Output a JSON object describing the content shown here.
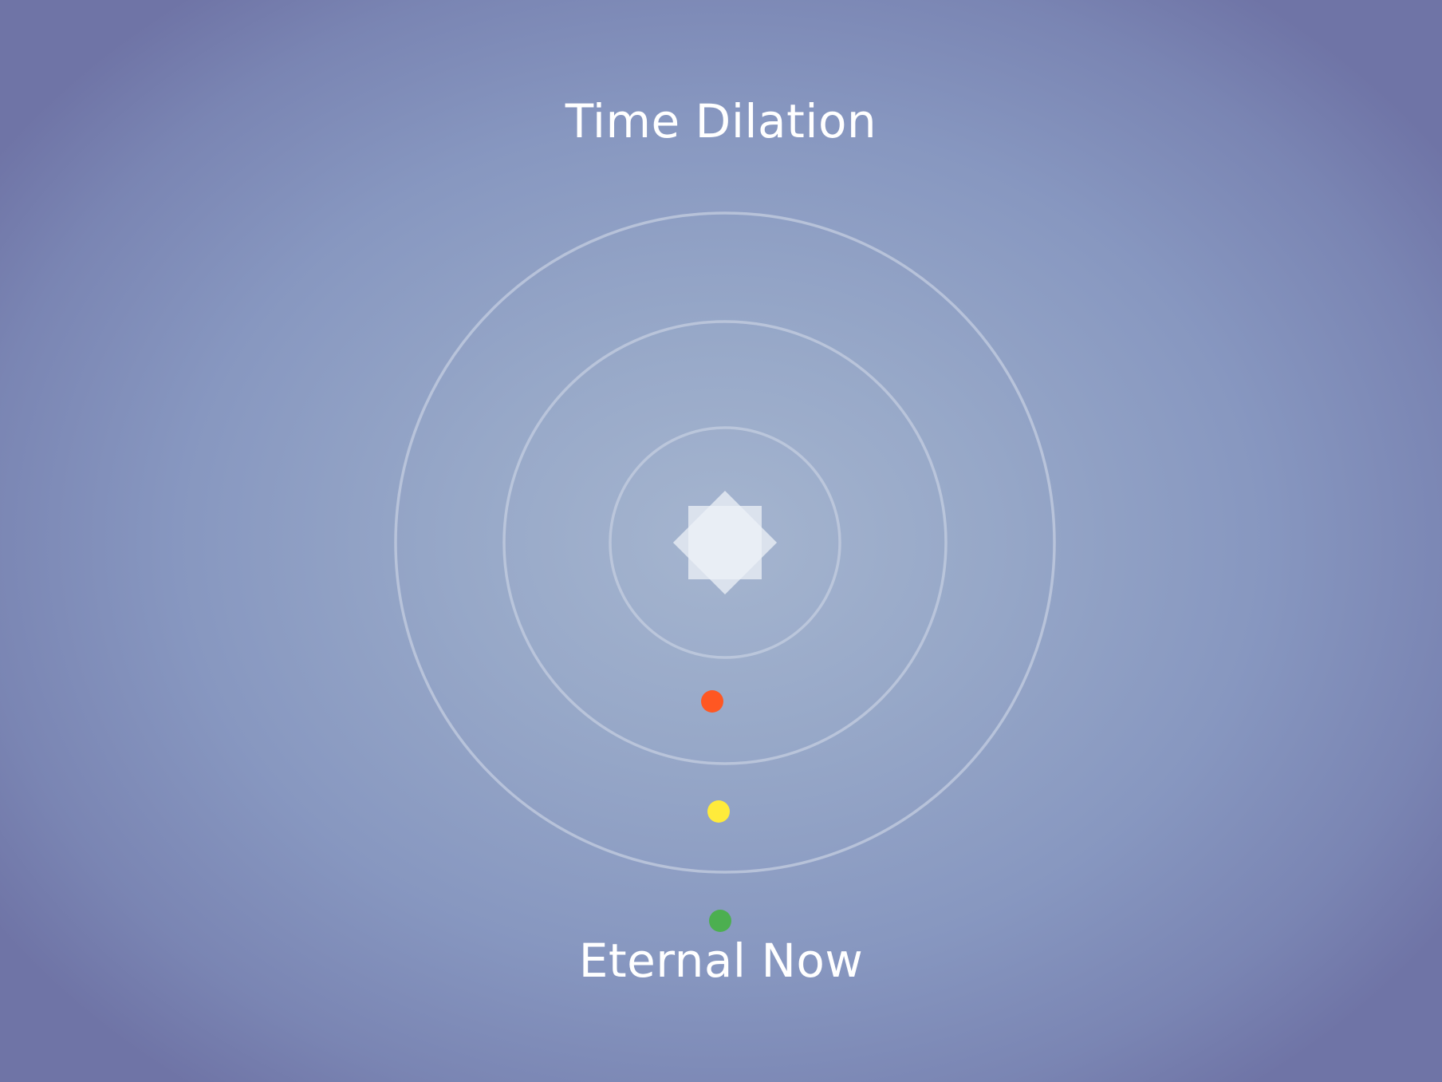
{
  "title": "Time Dilation",
  "caption": "Eternal Now",
  "orbits": [
    {
      "id": "inner",
      "count": 1
    },
    {
      "id": "middle",
      "count": 1
    },
    {
      "id": "outer",
      "count": 1
    }
  ],
  "markers": [
    {
      "id": "red",
      "color": "#ff5722"
    },
    {
      "id": "yellow",
      "color": "#ffeb3b"
    },
    {
      "id": "green",
      "color": "#4caf50"
    }
  ],
  "colors": {
    "orbit_stroke": "#c4cde0",
    "center_glyph": "#eef1f7"
  }
}
